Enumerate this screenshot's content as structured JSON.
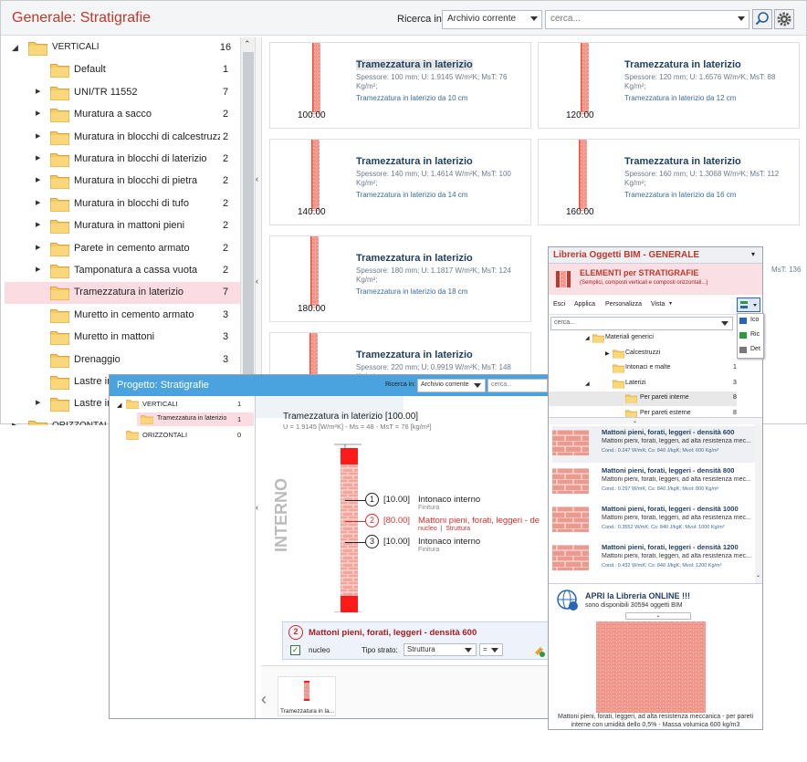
{
  "main": {
    "title": "Generale: Stratigrafie",
    "search_label": "Ricerca in:",
    "search_scope": "Archivio corrente",
    "search_placeholder": "cerca...",
    "tree": [
      {
        "label": "VERTICALI",
        "count": "16",
        "level": 0,
        "expanded": true
      },
      {
        "label": "Default",
        "count": "1",
        "level": 1,
        "arrow": false
      },
      {
        "label": "UNI/TR 11552",
        "count": "7",
        "level": 1,
        "arrow": true
      },
      {
        "label": "Muratura a sacco",
        "count": "2",
        "level": 1,
        "arrow": true
      },
      {
        "label": "Muratura in blocchi di calcestruzzo",
        "count": "2",
        "level": 1,
        "arrow": true
      },
      {
        "label": "Muratura in blocchi di laterizio",
        "count": "2",
        "level": 1,
        "arrow": true
      },
      {
        "label": "Muratura in blocchi di pietra",
        "count": "2",
        "level": 1,
        "arrow": true
      },
      {
        "label": "Muratura in blocchi di tufo",
        "count": "2",
        "level": 1,
        "arrow": true
      },
      {
        "label": "Muratura in mattoni pieni",
        "count": "2",
        "level": 1,
        "arrow": true
      },
      {
        "label": "Parete in cemento armato",
        "count": "2",
        "level": 1,
        "arrow": true
      },
      {
        "label": "Tamponatura a cassa vuota",
        "count": "2",
        "level": 1,
        "arrow": true
      },
      {
        "label": "Tramezzatura in laterizio",
        "count": "7",
        "level": 1,
        "arrow": false,
        "selected": true
      },
      {
        "label": "Muretto in cemento armato",
        "count": "3",
        "level": 1,
        "arrow": false
      },
      {
        "label": "Muretto in mattoni",
        "count": "3",
        "level": 1,
        "arrow": false
      },
      {
        "label": "Drenaggio",
        "count": "3",
        "level": 1,
        "arrow": false
      },
      {
        "label": "Lastre in",
        "count": "",
        "level": 1,
        "arrow": false
      },
      {
        "label": "Lastre in",
        "count": "",
        "level": 1,
        "arrow": true
      },
      {
        "label": "ORIZZONTALI",
        "count": "",
        "level": 0,
        "expanded": false
      }
    ],
    "cards": [
      {
        "title": "Tramezzatura in laterizio",
        "desc": "Spessore: 100 mm; U: 1.9145 W/m²K; MsT: 76 Kg/m²;",
        "sub": "Tramezzatura in laterizio da 10 cm",
        "thickness": "100.00"
      },
      {
        "title": "Tramezzatura in laterizio",
        "desc": "Spessore: 120 mm; U: 1.6576 W/m²K; MsT: 88 Kg/m²;",
        "sub": "Tramezzatura in laterizio da 12 cm",
        "thickness": "120.00"
      },
      {
        "title": "Tramezzatura in laterizio",
        "desc": "Spessore: 140 mm; U: 1.4614 W/m²K; MsT: 100 Kg/m²;",
        "sub": "Tramezzatura in laterizio da 14 cm",
        "thickness": "140.00"
      },
      {
        "title": "Tramezzatura in laterizio",
        "desc": "Spessore: 160 mm; U: 1.3068 W/m²K; MsT: 112 Kg/m²;",
        "sub": "Tramezzatura in laterizio da 16 cm",
        "thickness": "160.00"
      },
      {
        "title": "Tramezzatura in laterizio",
        "desc": "Spessore: 180 mm; U: 1.1817 W/m²K; MsT: 124 Kg/m²;",
        "sub": "Tramezzatura in laterizio da 18 cm",
        "thickness": "180.00"
      },
      {
        "title": "",
        "desc": "MsT: 136",
        "sub": "",
        "thickness": ""
      },
      {
        "title": "Tramezzatura in laterizio",
        "desc": "Spessore: 220 mm; U: 0.9919 W/m²K; MsT: 148 Kg/m²;",
        "sub": "",
        "thickness": ""
      }
    ]
  },
  "project": {
    "title": "Progetto: Stratigrafie",
    "search_label": "Ricerca in:",
    "search_scope": "Archivio corrente",
    "search_placeholder": "cerca...",
    "tree": [
      {
        "label": "VERTICALI",
        "count": "1"
      },
      {
        "label": "Tramezzatura in laterizio",
        "count": "1"
      },
      {
        "label": "ORIZZONTALI",
        "count": "0"
      }
    ],
    "detail_title": "Tramezzatura in laterizio [100.00]",
    "detail_sub": "U = 1.9145 [W/m²K] - Ms = 48 - MsT = 76 [kg/m²]",
    "side_label": "INTERNO",
    "layers": [
      {
        "num": "1",
        "thick": "[10.00]",
        "name": "Intonaco interno",
        "sub": "Finitura",
        "highlight": false
      },
      {
        "num": "2",
        "thick": "[80.00]",
        "name": "Mattoni pieni, forati, leggeri - de",
        "sub": "nucleo  |  Struttura",
        "highlight": true
      },
      {
        "num": "3",
        "thick": "[10.00]",
        "name": "Intonaco interno",
        "sub": "Finitura",
        "highlight": false
      }
    ],
    "sel_num": "2",
    "sel_name": "Mattoni pieni, forati, leggeri - densità 600",
    "nucleo_label": "nucleo",
    "tipo_label": "Tipo strato:",
    "tipo_value": "Struttura",
    "eq_value": "=",
    "thumb_label": "Tramezzatura in la..."
  },
  "library": {
    "title": "Libreria Oggetti BIM - GENERALE",
    "banner_title": "ELEMENTI per STRATIGRAFIE",
    "banner_sub": "(Semplici, composti verticali e composti orizzontali...)",
    "toolbar": [
      "Esci",
      "Applica",
      "Personalizza",
      "Vista"
    ],
    "search_placeholder": "cerca...",
    "menu": [
      "Ico",
      "Ric",
      "Det"
    ],
    "tree": [
      {
        "label": "Materiali generici",
        "count": ""
      },
      {
        "label": "Calcestruzzi",
        "count": ""
      },
      {
        "label": "Intonaci e malte",
        "count": "17"
      },
      {
        "label": "Laterizi",
        "count": "3"
      },
      {
        "label": "Per pareti interne",
        "count": "8"
      },
      {
        "label": "Per pareti esterne",
        "count": "8"
      }
    ],
    "materials": [
      {
        "title": "Mattoni pieni, forati, leggeri - densità 600",
        "sub": "Mattoni pieni, forati, leggeri, ad alta resistenza mec...",
        "props": "Cond.: 0.247 W/mK; Cs: 840 J/kgK; Mvol: 600 Kg/m³"
      },
      {
        "title": "Mattoni pieni, forati, leggeri - densità 800",
        "sub": "Mattoni pieni, forati, leggeri, ad alta resistenza mec...",
        "props": "Cond.: 0.297 W/mK; Cs: 840 J/kgK; Mvol: 800 Kg/m³"
      },
      {
        "title": "Mattoni pieni, forati, leggeri - densità 1000",
        "sub": "Mattoni pieni, forati, leggeri, ad alta resistenza mec...",
        "props": "Cond.: 0.3552 W/mK; Cs: 840 J/kgK; Mvol: 1000 Kg/m³"
      },
      {
        "title": "Mattoni pieni, forati, leggeri - densità 1200",
        "sub": "Mattoni pieni, forati, leggeri, ad alta resistenza mec...",
        "props": "Cond.: 0.432 W/mK; Cs: 840 J/kgK; Mvol: 1200 Kg/m³"
      }
    ],
    "online_title": "APRI la Libreria ONLINE !!!",
    "online_sub": "sono disponibili 30594 oggetti BIM",
    "preview_caption": "Mattoni pieni, forati, leggeri, ad alta resistenza meccanica - per pareti interne con umidità dello 0,5% - Massa volumica 600 kg/m3"
  }
}
